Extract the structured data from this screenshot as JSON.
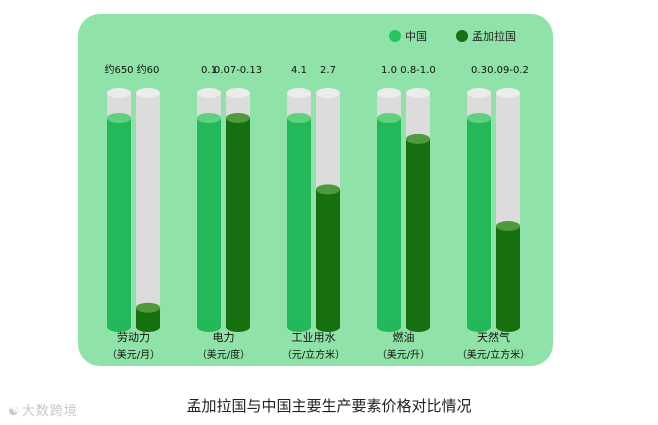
{
  "chart_data": {
    "type": "bar",
    "title": "孟加拉国与中国主要生产要素价格对比情况",
    "legend_position": "top-right",
    "series": [
      {
        "name": "中国",
        "color": "#23b85a"
      },
      {
        "name": "孟加拉国",
        "color": "#16700f"
      }
    ],
    "groups": [
      {
        "label": "劳动力",
        "unit": "（美元/月）",
        "china_text": "约650",
        "bangladesh_text": "约60",
        "china_value": 650,
        "bangladesh_value": 60
      },
      {
        "label": "电力",
        "unit": "（美元/度）",
        "china_text": "0.1",
        "bangladesh_text": "0.07-0.13",
        "china_value": 0.1,
        "bangladesh_value": 0.1
      },
      {
        "label": "工业用水",
        "unit": "（元/立方米）",
        "china_text": "4.1",
        "bangladesh_text": "2.7",
        "china_value": 4.1,
        "bangladesh_value": 2.7
      },
      {
        "label": "燃油",
        "unit": "（美元/升）",
        "china_text": "1.0",
        "bangladesh_text": "0.8-1.0",
        "china_value": 1.0,
        "bangladesh_value": 0.9
      },
      {
        "label": "天然气",
        "unit": "（美元/立方米）",
        "china_text": "0.3",
        "bangladesh_text": "0.09-0.2",
        "china_value": 0.3,
        "bangladesh_value": 0.145
      }
    ]
  },
  "watermark": {
    "text": "大数跨境",
    "icon": "watermark-logo-icon"
  }
}
